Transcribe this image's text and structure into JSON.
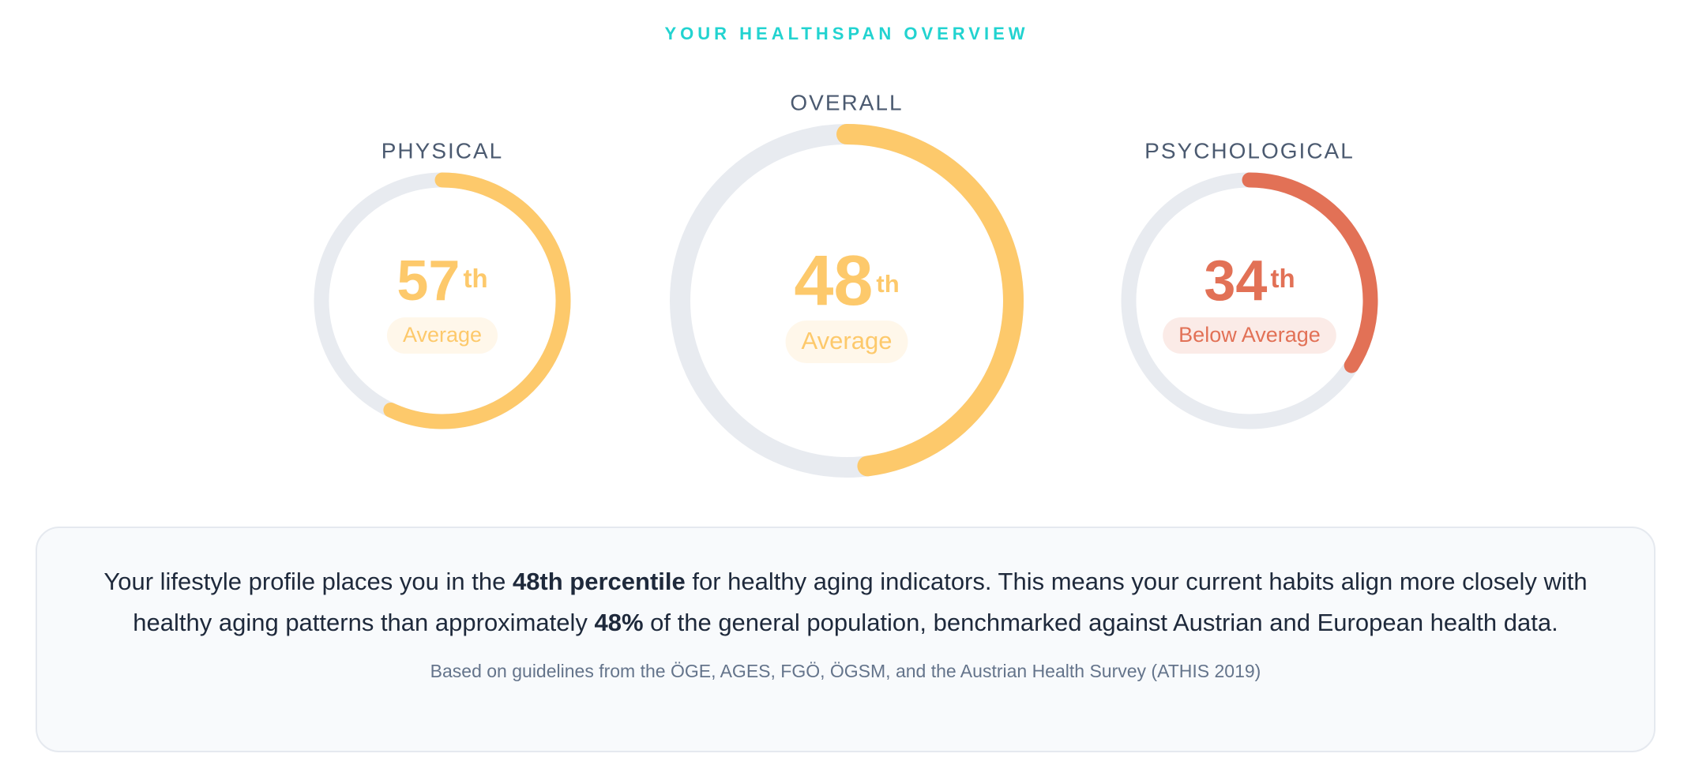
{
  "header": {
    "title": "YOUR HEALTHSPAN OVERVIEW"
  },
  "scale": [
    0,
    100
  ],
  "gauges": [
    {
      "label": "PHYSICAL",
      "value": 57,
      "suffix": "th",
      "status": "Average",
      "color": "#fdc96b"
    },
    {
      "label": "OVERALL",
      "value": 48,
      "suffix": "th",
      "status": "Average",
      "color": "#fdc96b"
    },
    {
      "label": "PSYCHOLOGICAL",
      "value": 34,
      "suffix": "th",
      "status": "Below Average",
      "color": "#e27156"
    }
  ],
  "summary": {
    "segments": [
      {
        "text": "Your lifestyle profile places you in the "
      },
      {
        "text": "48th percentile",
        "bold": true
      },
      {
        "text": " for healthy aging indicators. This means your current habits align more closely with healthy aging patterns than approximately "
      },
      {
        "text": "48%",
        "bold": true
      },
      {
        "text": " of the general population, benchmarked against Austrian and European health data."
      }
    ],
    "source": "Based on guidelines from the ÖGE, AGES, FGÖ, ÖGSM, and the Austrian Health Survey (ATHIS 2019)"
  }
}
